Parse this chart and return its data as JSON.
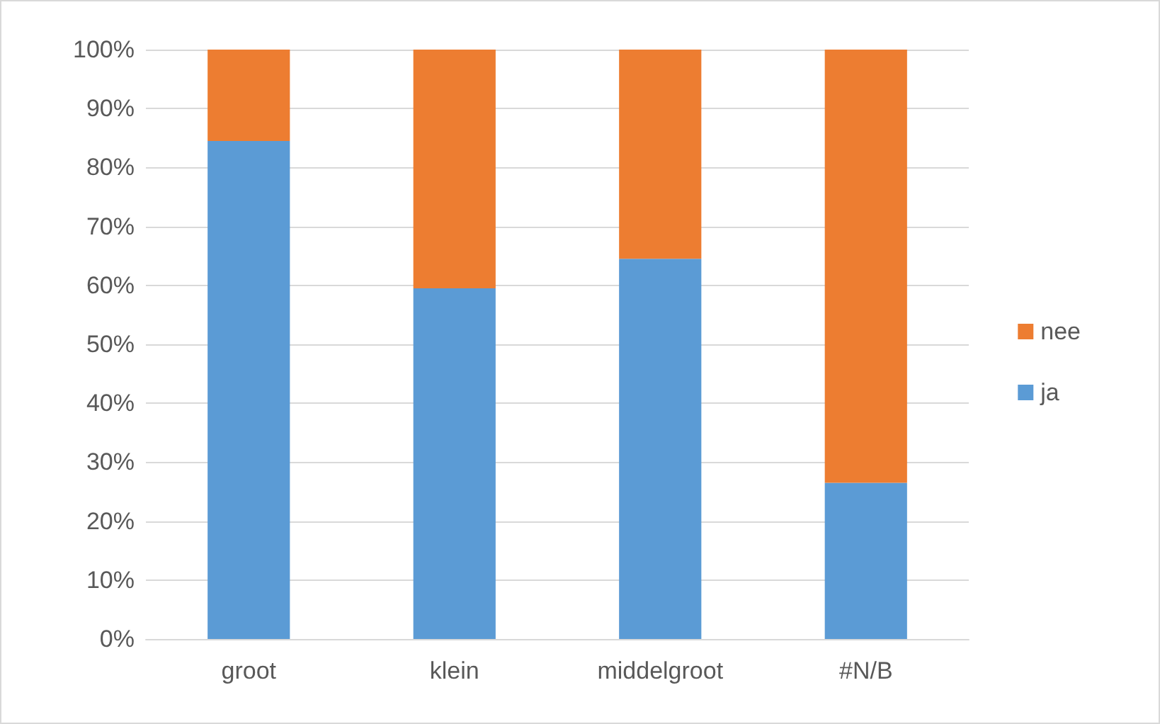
{
  "chart_data": {
    "type": "bar",
    "stacked": true,
    "categories": [
      "groot",
      "klein",
      "middelgroot",
      "#N/B"
    ],
    "series": [
      {
        "name": "ja",
        "color": "#5b9bd5",
        "values": [
          84.5,
          59.5,
          64.5,
          26.5
        ]
      },
      {
        "name": "nee",
        "color": "#ed7d31",
        "values": [
          15.5,
          40.5,
          35.5,
          73.5
        ]
      }
    ],
    "ylim": [
      0,
      100
    ],
    "yticks": [
      {
        "value": 0,
        "label": "0%"
      },
      {
        "value": 10,
        "label": "10%"
      },
      {
        "value": 20,
        "label": "20%"
      },
      {
        "value": 30,
        "label": "30%"
      },
      {
        "value": 40,
        "label": "40%"
      },
      {
        "value": 50,
        "label": "50%"
      },
      {
        "value": 60,
        "label": "60%"
      },
      {
        "value": 70,
        "label": "70%"
      },
      {
        "value": 80,
        "label": "80%"
      },
      {
        "value": 90,
        "label": "90%"
      },
      {
        "value": 100,
        "label": "100%"
      }
    ],
    "grid": "y",
    "legend": "right"
  }
}
